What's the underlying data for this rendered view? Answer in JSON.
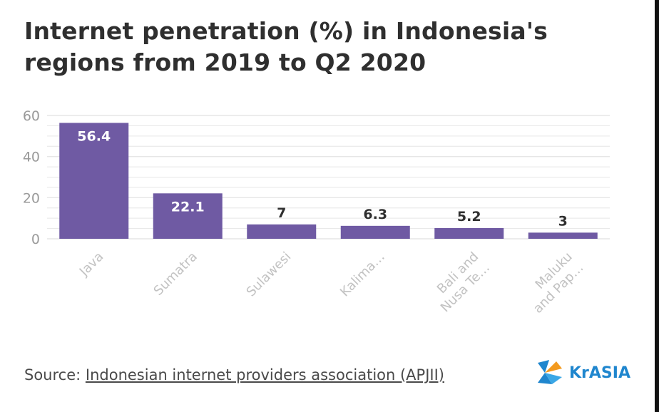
{
  "title": "Internet penetration (%) in Indonesia's regions from 2019 to Q2 2020",
  "source": {
    "prefix": "Source: ",
    "link_text": "Indonesian internet providers association (APJII)"
  },
  "brand": {
    "name": "KrASIA"
  },
  "colors": {
    "bar": "#6f5aa3",
    "grid": "#e6e6e6",
    "axis_text": "#9a9a9a",
    "title": "#2f2f2f",
    "brand_blue": "#1f86ce",
    "brand_orange": "#f39a1e"
  },
  "chart_data": {
    "type": "bar",
    "title": "Internet penetration (%) in Indonesia's regions from 2019 to Q2 2020",
    "xlabel": "",
    "ylabel": "",
    "ylim": [
      0,
      60
    ],
    "yticks": [
      0,
      20,
      40,
      60
    ],
    "grid": true,
    "categories": [
      "Java",
      "Sumatra",
      "Sulawesi",
      "Kalima…",
      "Bali and|Nusa Te…",
      "Maluku|and Pap…"
    ],
    "values": [
      56.4,
      22.1,
      7,
      6.3,
      5.2,
      3
    ],
    "data_labels": [
      "56.4",
      "22.1",
      "7",
      "6.3",
      "5.2",
      "3"
    ]
  }
}
